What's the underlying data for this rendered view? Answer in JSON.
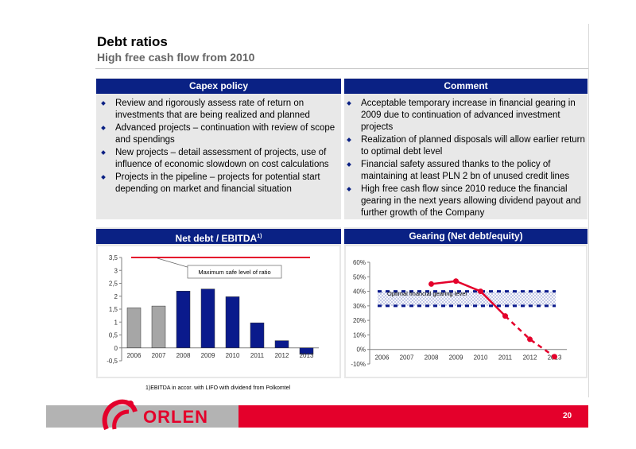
{
  "header": {
    "title": "Debt ratios",
    "subtitle": "High free cash flow from 2010"
  },
  "capex": {
    "title": "Capex policy",
    "items": [
      "Review and rigorously assess rate of return on investments that are being realized and planned",
      "Advanced projects – continuation with review of scope and spendings",
      "New projects – detail assessment of projects, use of influence of economic slowdown on cost calculations",
      "Projects in the pipeline – projects for potential start depending on market and financial situation"
    ]
  },
  "comment": {
    "title": "Comment",
    "items": [
      "Acceptable temporary increase in financial gearing in 2009 due to continuation of advanced investment projects",
      "Realization of planned disposals will allow earlier return to optimal debt level",
      "Financial safety assured thanks to the policy of maintaining at least PLN 2 bn of unused credit lines",
      "High free cash flow since 2010 reduce the financial gearing in the next years allowing dividend payout and further growth of the Company"
    ]
  },
  "netdebt_panel": {
    "title": "Net debt / EBITDA",
    "sup": "1)"
  },
  "gearing_panel": {
    "title": "Gearing (Net debt/equity)"
  },
  "chart_data": [
    {
      "type": "bar",
      "categories": [
        "2006",
        "2007",
        "2008",
        "2009",
        "2010",
        "2011",
        "2012",
        "2013"
      ],
      "values": [
        1.55,
        1.62,
        2.2,
        2.28,
        1.98,
        0.97,
        0.28,
        -0.25
      ],
      "bar_colors": [
        "#a6a6a6",
        "#a6a6a6",
        "#0a1a8c",
        "#0a1a8c",
        "#0a1a8c",
        "#0a1a8c",
        "#0a1a8c",
        "#0a1a8c"
      ],
      "ylim": [
        -0.5,
        3.5
      ],
      "yticks": [
        "-0,5",
        "0",
        "0,5",
        "1",
        "1,5",
        "2",
        "2,5",
        "3",
        "3,5"
      ],
      "reference_line": {
        "value": 3.5,
        "color": "#e4002b"
      },
      "annotation": "Maximum safe level of ratio"
    },
    {
      "type": "line",
      "categories": [
        "2006",
        "2007",
        "2008",
        "2009",
        "2010",
        "2011",
        "2012",
        "2013"
      ],
      "actual_values": [
        null,
        null,
        45,
        47,
        40,
        23,
        7,
        -5
      ],
      "line_color": "#e4002b",
      "ylim": [
        -10,
        60
      ],
      "yticks": [
        "-10%",
        "0%",
        "10%",
        "20%",
        "30%",
        "40%",
        "50%",
        "60%"
      ],
      "band": {
        "from": 30,
        "to": 40,
        "color": "#0a1a8c"
      },
      "annotation": "Optimal financial gearing level"
    }
  ],
  "footnote": "1)EBITDA in accor. with LIFO with dividend from Polkomtel",
  "footer": {
    "brand": "ORLEN",
    "page": "20"
  }
}
